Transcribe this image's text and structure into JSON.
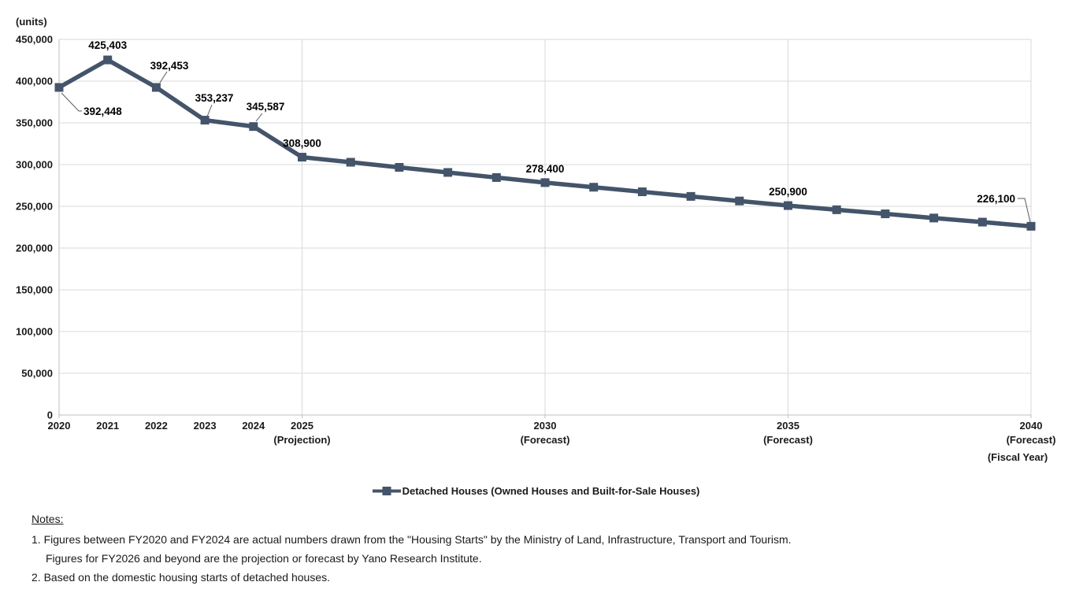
{
  "chart_data": {
    "type": "line",
    "ylabel": "(units)",
    "xaxis_note": "(Fiscal Year)",
    "ylim": [
      0,
      450000
    ],
    "ytick_step": 50000,
    "xlim": [
      2020,
      2040
    ],
    "grid_years": [
      2025,
      2030,
      2035,
      2040
    ],
    "grid": "on",
    "legend_position": "bottom-center",
    "xticks": [
      {
        "year": 2020,
        "label": "2020",
        "sublabel": ""
      },
      {
        "year": 2021,
        "label": "2021",
        "sublabel": ""
      },
      {
        "year": 2022,
        "label": "2022",
        "sublabel": ""
      },
      {
        "year": 2023,
        "label": "2023",
        "sublabel": ""
      },
      {
        "year": 2024,
        "label": "2024",
        "sublabel": ""
      },
      {
        "year": 2025,
        "label": "2025",
        "sublabel": "(Projection)"
      },
      {
        "year": 2030,
        "label": "2030",
        "sublabel": "(Forecast)"
      },
      {
        "year": 2035,
        "label": "2035",
        "sublabel": "(Forecast)"
      },
      {
        "year": 2040,
        "label": "2040",
        "sublabel": "(Forecast)"
      }
    ],
    "series": [
      {
        "name": "Detached Houses (Owned Houses and Built-for-Sale Houses)",
        "color": "#44546A",
        "points": [
          {
            "year": 2020,
            "value": 392448,
            "label": "392,448"
          },
          {
            "year": 2021,
            "value": 425403,
            "label": "425,403"
          },
          {
            "year": 2022,
            "value": 392453,
            "label": "392,453"
          },
          {
            "year": 2023,
            "value": 353237,
            "label": "353,237"
          },
          {
            "year": 2024,
            "value": 345587,
            "label": "345,587"
          },
          {
            "year": 2025,
            "value": 308900,
            "label": "308,900"
          },
          {
            "year": 2026,
            "value": 302800,
            "estimated": true
          },
          {
            "year": 2027,
            "value": 296700,
            "estimated": true
          },
          {
            "year": 2028,
            "value": 290600,
            "estimated": true
          },
          {
            "year": 2029,
            "value": 284500,
            "estimated": true
          },
          {
            "year": 2030,
            "value": 278400,
            "label": "278,400"
          },
          {
            "year": 2031,
            "value": 272900,
            "estimated": true
          },
          {
            "year": 2032,
            "value": 267400,
            "estimated": true
          },
          {
            "year": 2033,
            "value": 261900,
            "estimated": true
          },
          {
            "year": 2034,
            "value": 256400,
            "estimated": true
          },
          {
            "year": 2035,
            "value": 250900,
            "label": "250,900"
          },
          {
            "year": 2036,
            "value": 245900,
            "estimated": true
          },
          {
            "year": 2037,
            "value": 241000,
            "estimated": true
          },
          {
            "year": 2038,
            "value": 236000,
            "estimated": true
          },
          {
            "year": 2039,
            "value": 231100,
            "estimated": true
          },
          {
            "year": 2040,
            "value": 226100,
            "label": "226,100"
          }
        ]
      }
    ],
    "colors": {
      "gridline": "#D9D9D9",
      "axis": "#BFBFBF",
      "leader": "#595959",
      "text": "#1A1A1A"
    }
  },
  "legend": {
    "label": "Detached Houses (Owned Houses and Built-for-Sale Houses)"
  },
  "notes": {
    "title": "Notes:",
    "lines": [
      "1. Figures between FY2020 and FY2024 are actual numbers drawn from the \"Housing Starts\" by the Ministry of Land, Infrastructure, Transport and Tourism.",
      "Figures for FY2026 and beyond are the projection or forecast by Yano Research Institute.",
      "2. Based on the domestic housing starts of detached houses."
    ]
  }
}
